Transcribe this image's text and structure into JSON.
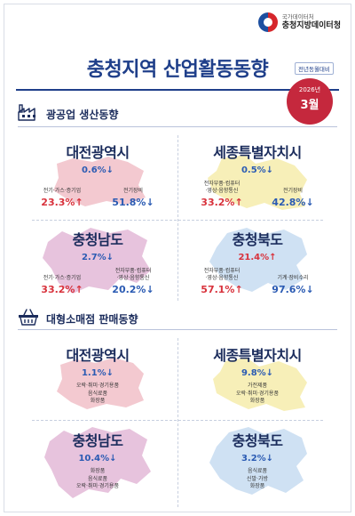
{
  "agency": {
    "sub": "국가데이터처",
    "name": "충청지방데이터청"
  },
  "title": "충청지역 산업활동동향",
  "badge": {
    "yoy": "전년동월대비",
    "year": "2026년",
    "month": "3월"
  },
  "mining": {
    "title": "광공업 생산동향",
    "regions": [
      {
        "name": "대전광역시",
        "total": "0.6%↓",
        "total_dir": "down",
        "items": [
          {
            "label": "전기·가스·증기업",
            "value": "23.3%↑",
            "dir": "up"
          },
          {
            "label": "전기장비",
            "value": "51.8%↓",
            "dir": "down"
          }
        ]
      },
      {
        "name": "세종특별자치시",
        "total": "0.5%↓",
        "total_dir": "down",
        "items": [
          {
            "label": "전자부품·컴퓨터\n·영상·음향통신",
            "value": "33.2%↑",
            "dir": "up"
          },
          {
            "label": "전기장비",
            "value": "42.8%↓",
            "dir": "down"
          }
        ]
      },
      {
        "name": "충청남도",
        "total": "2.7%↓",
        "total_dir": "down",
        "items": [
          {
            "label": "전기·가스·증기업",
            "value": "33.2%↑",
            "dir": "up"
          },
          {
            "label": "전자부품·컴퓨터\n·영상·음향통신",
            "value": "20.2%↓",
            "dir": "down"
          }
        ]
      },
      {
        "name": "충청북도",
        "total": "21.4%↑",
        "total_dir": "up",
        "items": [
          {
            "label": "전자부품·컴퓨터\n·영상·음향통신",
            "value": "57.1%↑",
            "dir": "up"
          },
          {
            "label": "기계·장비수리",
            "value": "97.6%↓",
            "dir": "down"
          }
        ]
      }
    ]
  },
  "retail": {
    "title": "대형소매점 판매동향",
    "regions": [
      {
        "name": "대전광역시",
        "total": "1.1%↓",
        "total_dir": "down",
        "items": [
          "오락·취미·경기용품",
          "음식료품",
          "화장품"
        ]
      },
      {
        "name": "세종특별자치시",
        "total": "9.8%↓",
        "total_dir": "down",
        "items": [
          "가전제품",
          "오락·취미·경기용품",
          "화장품"
        ]
      },
      {
        "name": "충청남도",
        "total": "10.4%↓",
        "total_dir": "down",
        "items": [
          "화장품",
          "음식료품",
          "오락·취미·경기용품"
        ]
      },
      {
        "name": "충청북도",
        "total": "3.2%↓",
        "total_dir": "down",
        "items": [
          "음식료품",
          "신발·가방",
          "화장품"
        ]
      }
    ]
  },
  "colors": {
    "daejeon": "#f3c9d0",
    "sejong": "#f7efb8",
    "chungnam": "#e7c3dd",
    "chungbuk": "#cfe1f3",
    "up": "#d8323c",
    "down": "#2b5bb3",
    "badge": "#c5283d",
    "title": "#1f3f8a"
  }
}
